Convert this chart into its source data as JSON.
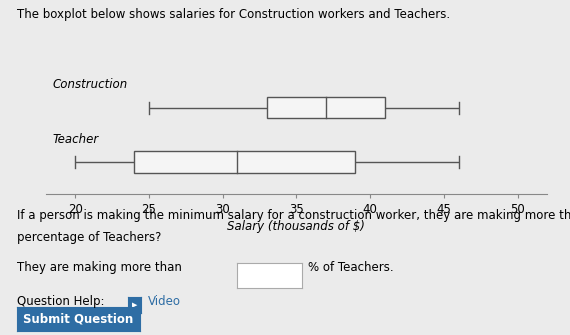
{
  "construction": {
    "min": 25,
    "q1": 33,
    "median": 37,
    "q3": 41,
    "max": 46
  },
  "teacher": {
    "min": 20,
    "q1": 24,
    "median": 31,
    "q3": 39,
    "max": 46
  },
  "xlim": [
    18,
    52
  ],
  "xticks": [
    20,
    25,
    30,
    35,
    40,
    45,
    50
  ],
  "xlabel": "Salary (thousands of $)",
  "construction_label": "Construction",
  "teacher_label": "Teacher",
  "title": "The boxplot below shows salaries for Construction workers and Teachers.",
  "question_line1": "If a person is making the minimum salary for a construction worker, they are making more than what",
  "question_line2": "percentage of Teachers?",
  "answer_text": "They are making more than",
  "answer_suffix": "% of Teachers.",
  "help_label": "Question Help:",
  "video_label": "Video",
  "submit_text": "Submit Question",
  "background_color": "#ebebeb",
  "box_facecolor": "#f5f5f5",
  "line_color": "#555555",
  "submit_color": "#2e6da4",
  "video_color": "#2e6da4"
}
